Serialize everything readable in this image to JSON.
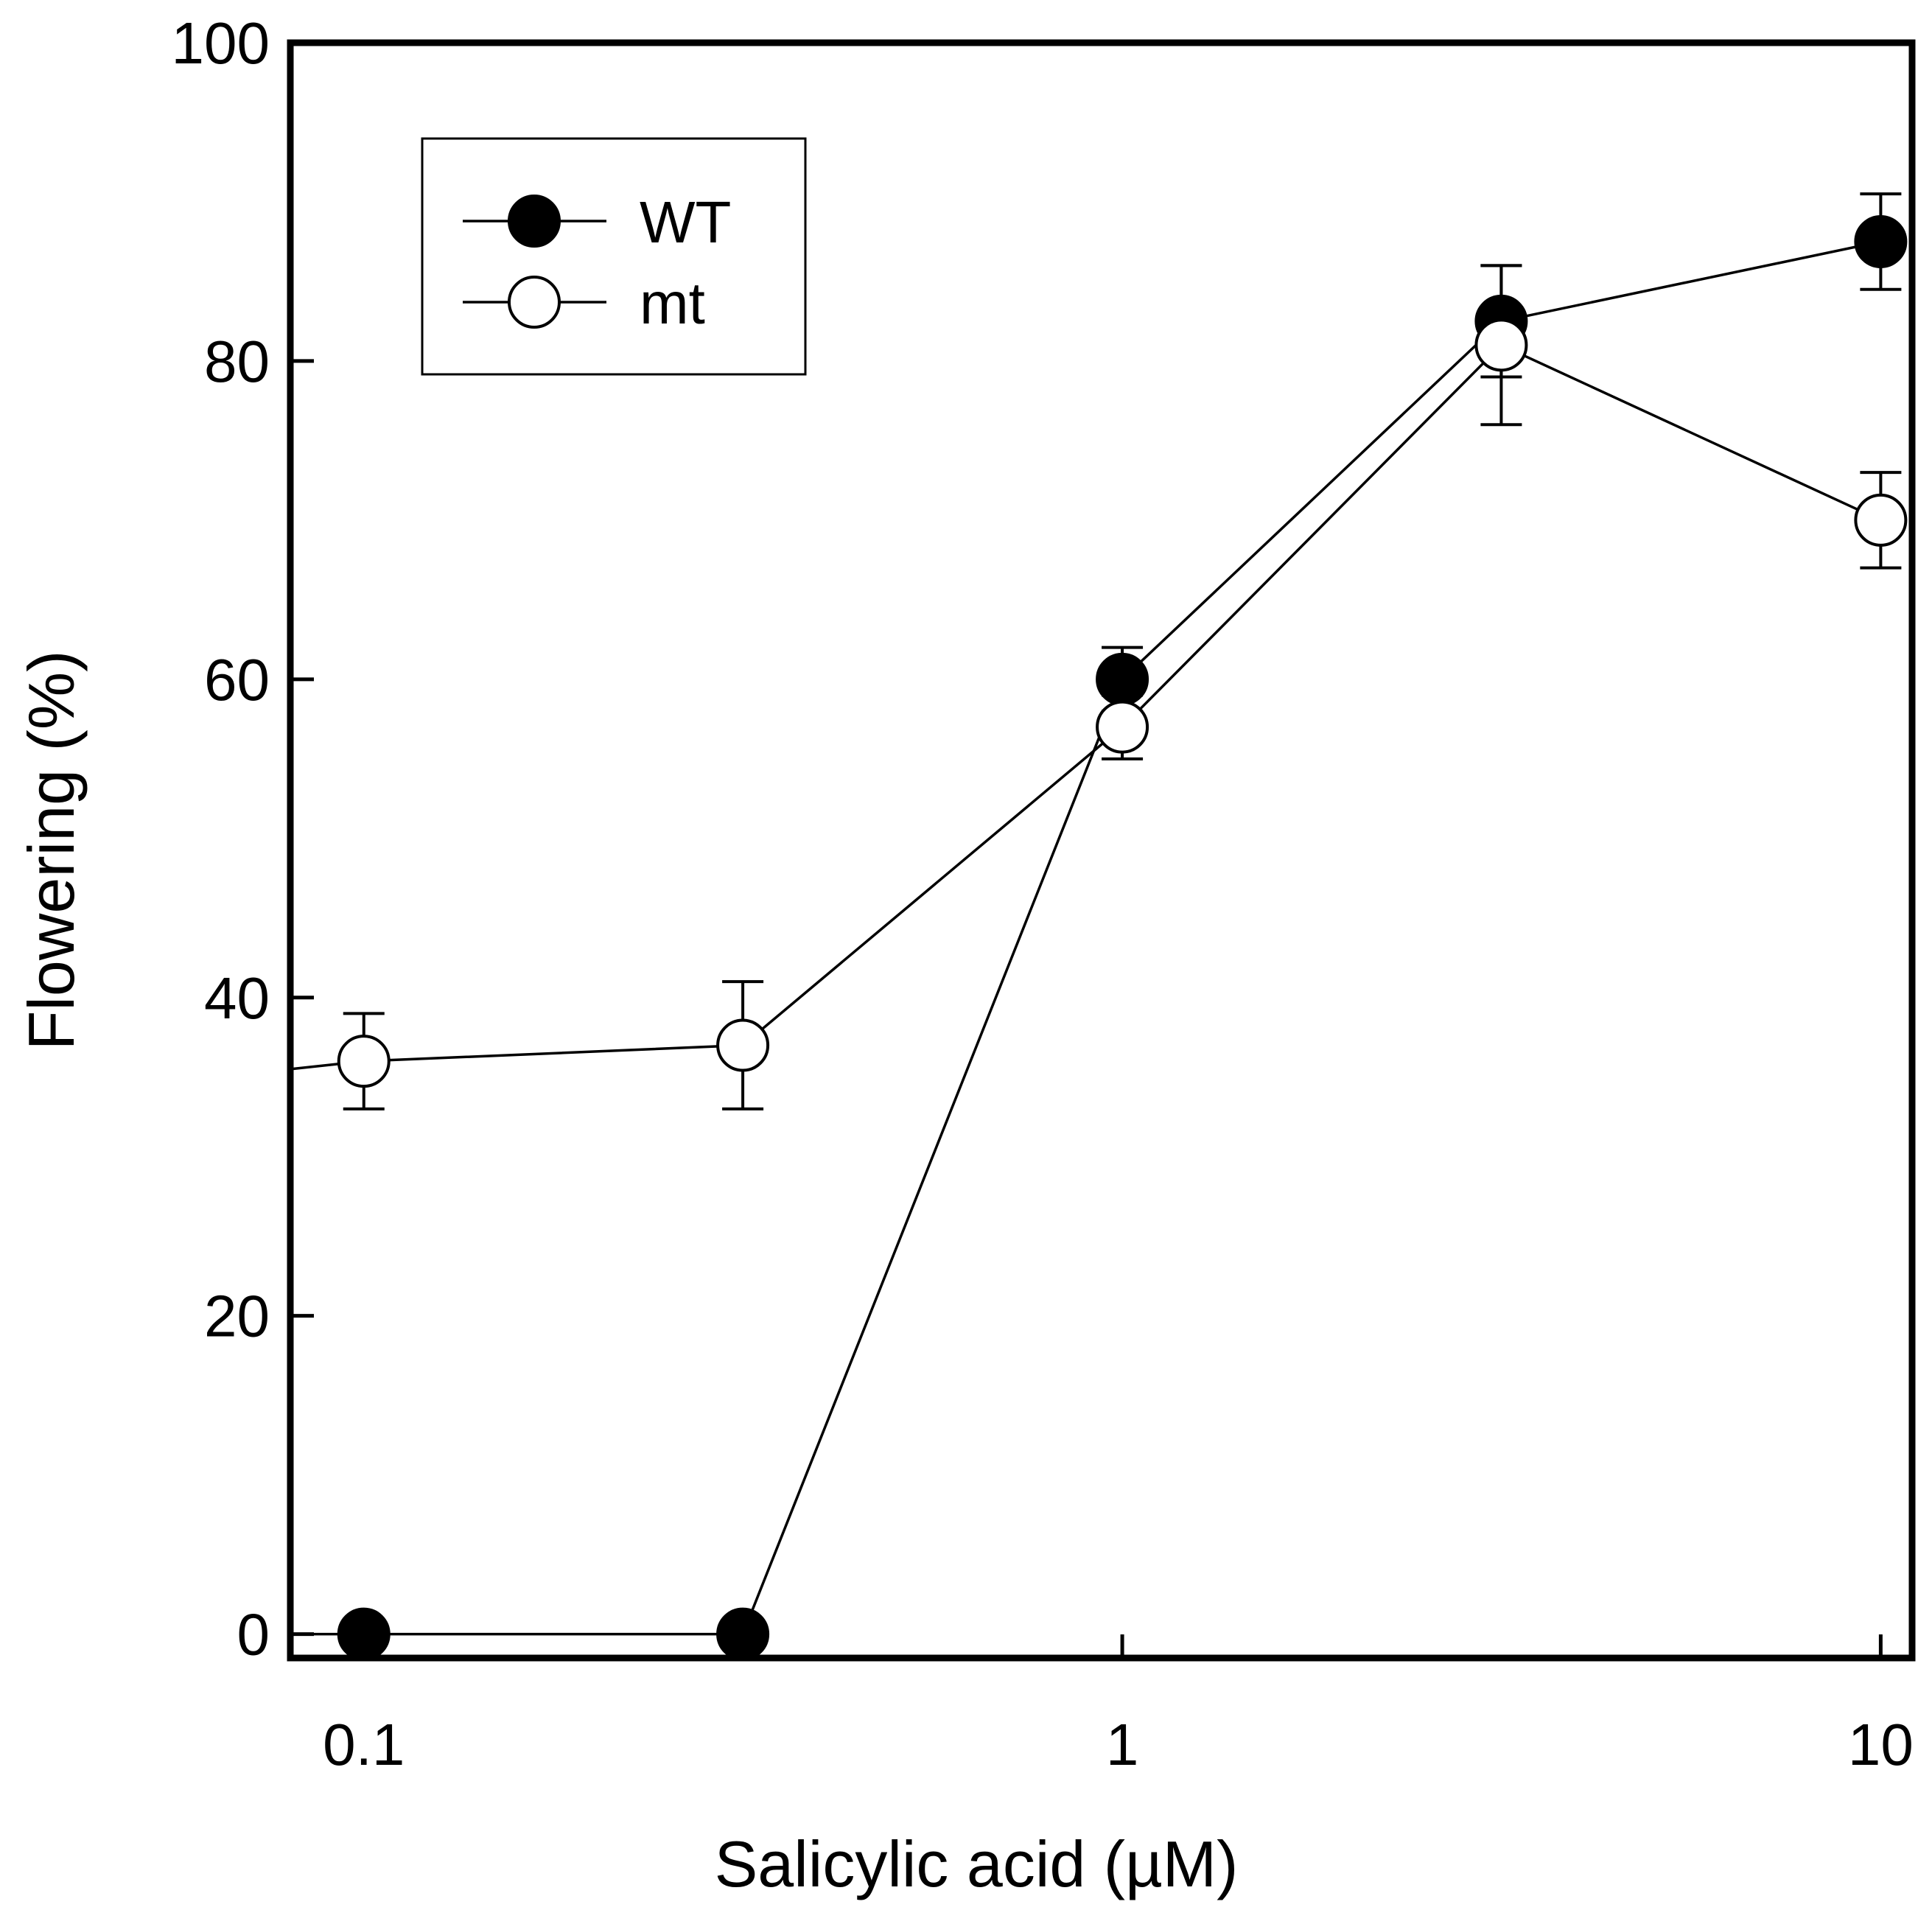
{
  "chart_data": {
    "type": "line",
    "title": "",
    "xlabel": "Salicylic acid (µM)",
    "ylabel": "Flowering (%)",
    "xscale": "log",
    "xlim": [
      0.08,
      11
    ],
    "ylim": [
      -1.5,
      100
    ],
    "x_ticks": [
      {
        "value": 0.1,
        "label": "0.1"
      },
      {
        "value": 1,
        "label": "1"
      },
      {
        "value": 10,
        "label": "10"
      }
    ],
    "y_ticks": [
      {
        "value": 0,
        "label": "0"
      },
      {
        "value": 20,
        "label": "20"
      },
      {
        "value": 40,
        "label": "40"
      },
      {
        "value": 60,
        "label": "60"
      },
      {
        "value": 80,
        "label": "80"
      },
      {
        "value": 100,
        "label": "100"
      }
    ],
    "legend_position": "top-left",
    "series": [
      {
        "name": "WT",
        "marker": "filled-circle",
        "x": [
          0.1,
          0.316,
          1,
          3.16,
          10
        ],
        "y": [
          0,
          0,
          60,
          82.5,
          87.5
        ],
        "error": [
          0,
          0,
          2,
          3.5,
          3
        ],
        "start_y": 0
      },
      {
        "name": "mt",
        "marker": "open-circle",
        "x": [
          0.1,
          0.316,
          1,
          3.16,
          10
        ],
        "y": [
          36,
          37,
          57,
          81,
          70
        ],
        "error": [
          3,
          4,
          2,
          5,
          3
        ],
        "start_y": 35.5
      }
    ]
  }
}
